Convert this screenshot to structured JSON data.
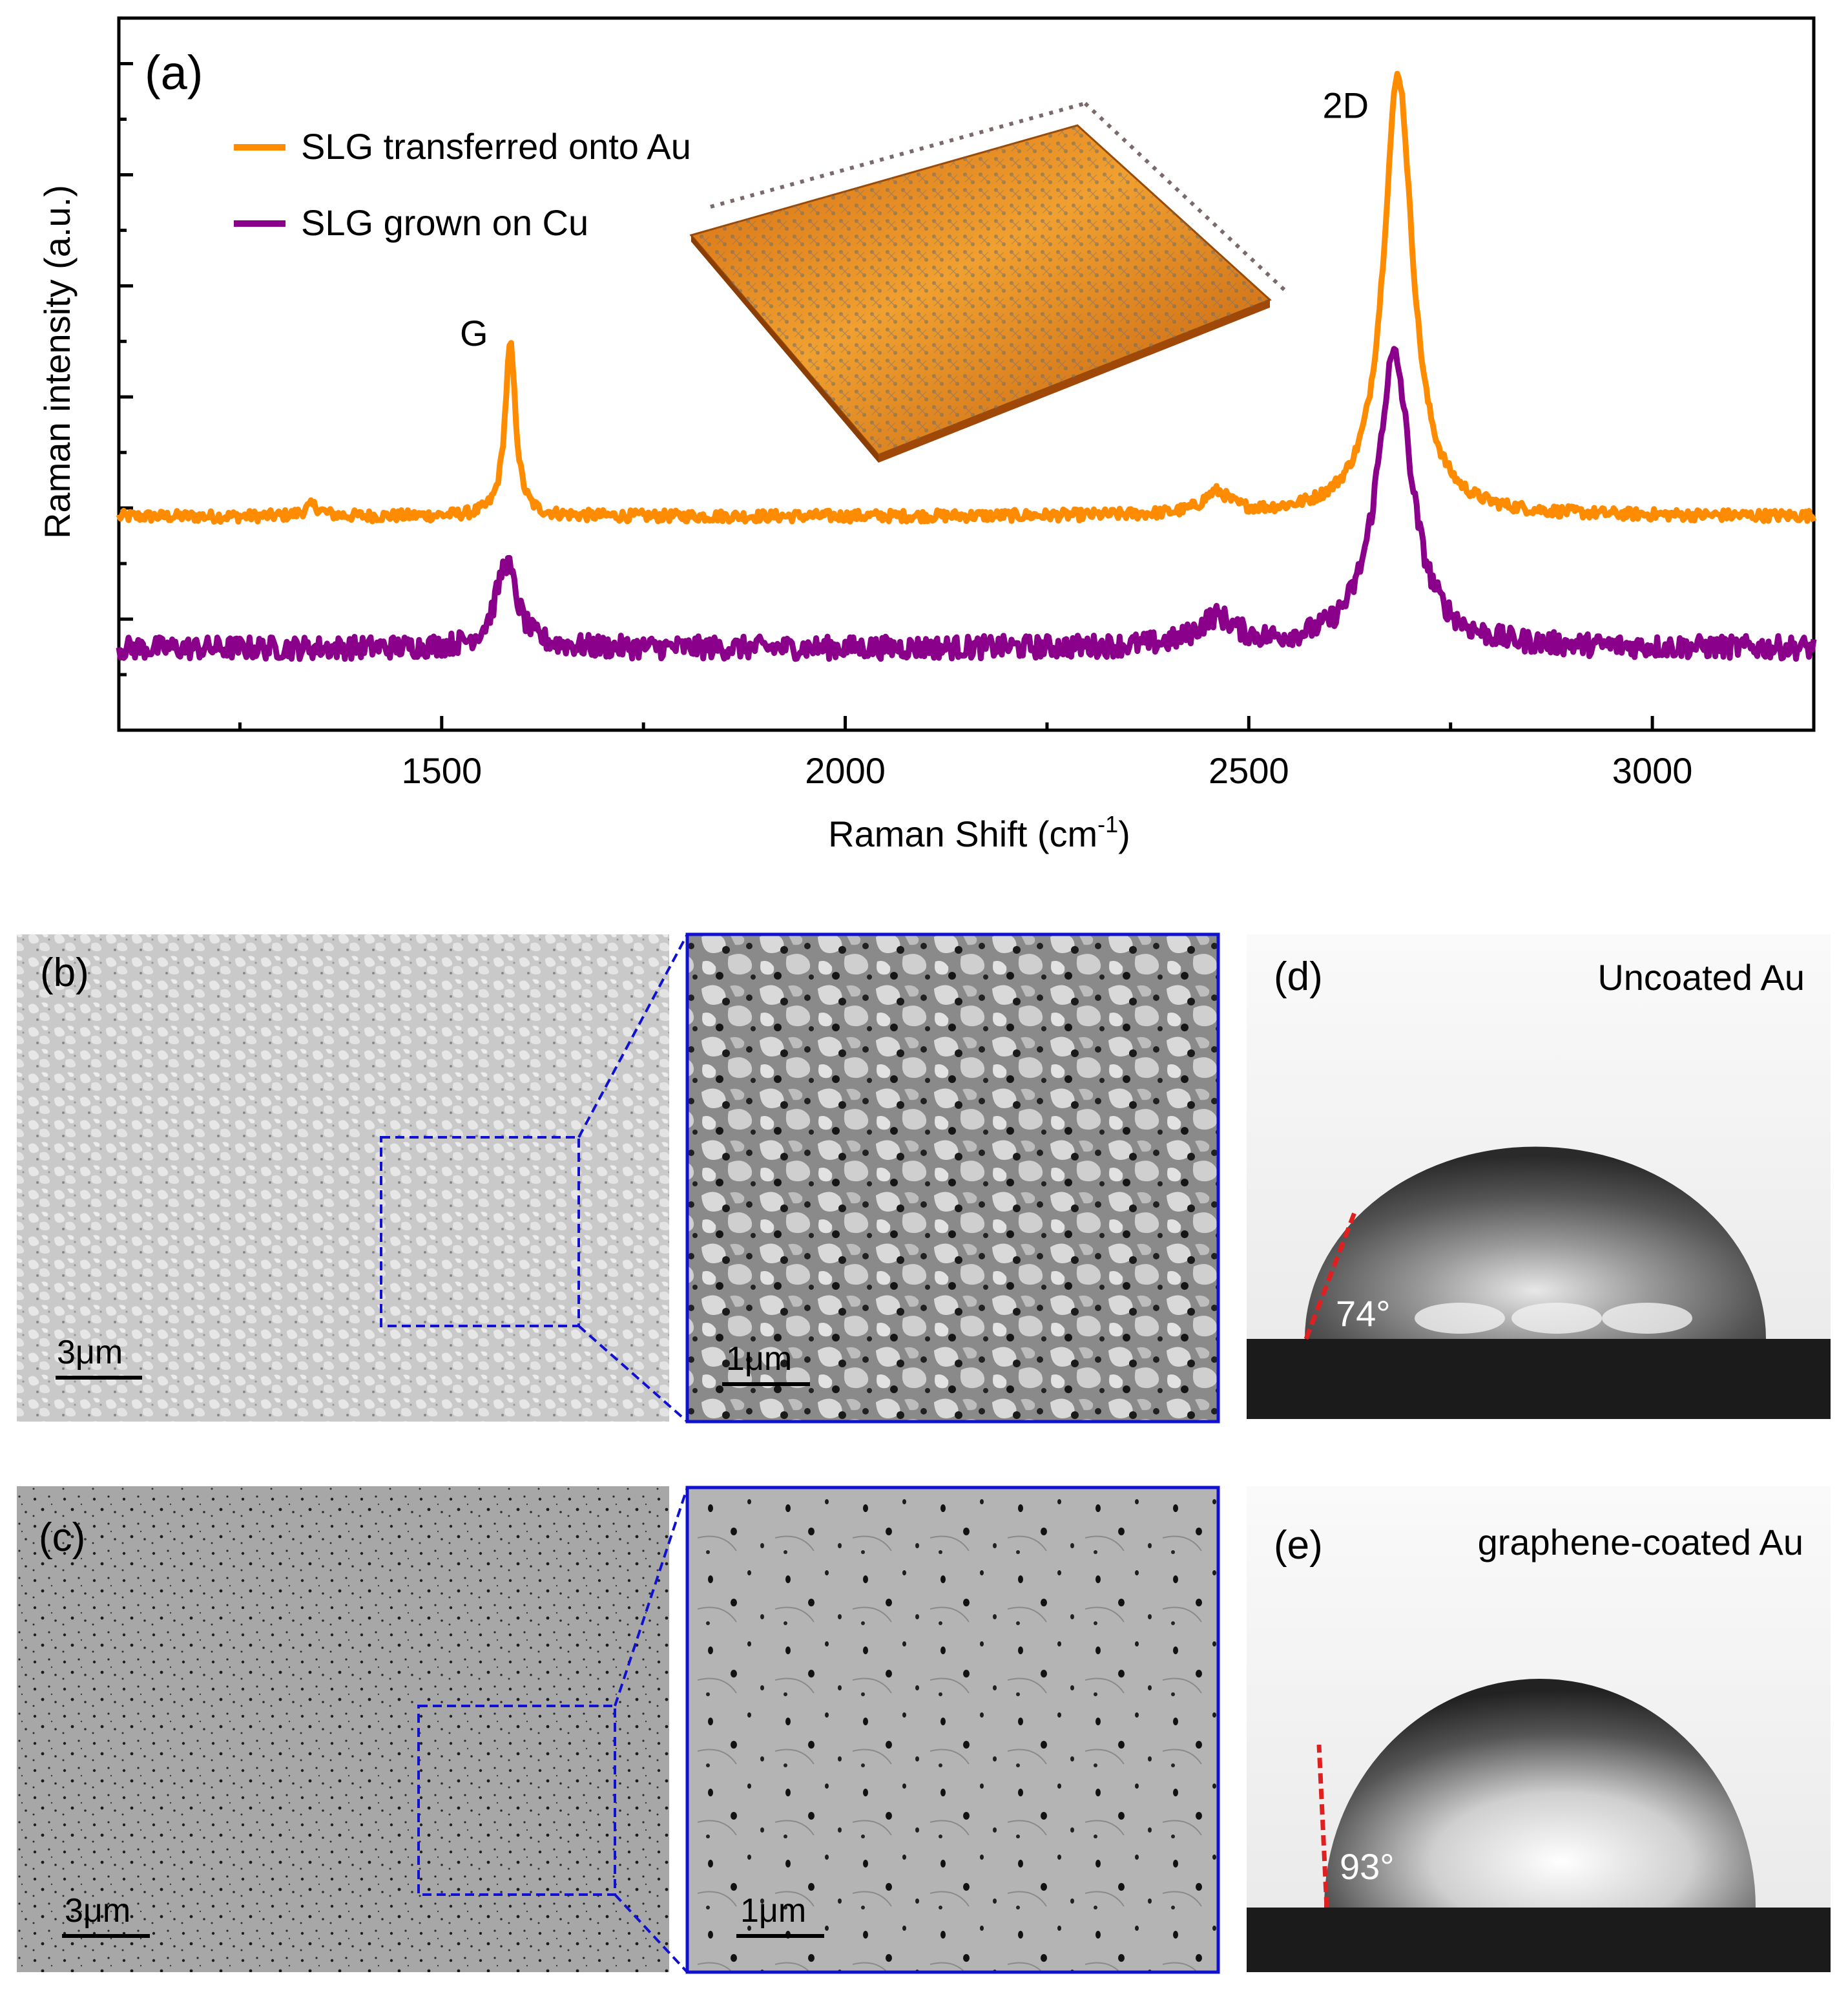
{
  "chart_data": {
    "type": "line",
    "panel_label": "(a)",
    "xlabel": "Raman Shift (cm",
    "xlabel_sup": "-1",
    "xlabel_close": ")",
    "ylabel": "Raman intensity (a.u.)",
    "xlim": [
      1100,
      3200
    ],
    "ylim": [
      0,
      100
    ],
    "x_ticks": [
      1500,
      2000,
      2500,
      3000
    ],
    "x_tick_labels": [
      "1500",
      "2000",
      "2500",
      "3000"
    ],
    "y_tick_labels_shown": false,
    "legend_position": "top-left",
    "series": [
      {
        "name": "SLG transferred onto Au",
        "color": "#ff8c00",
        "baseline": 30,
        "noise": 0.8,
        "peaks": [
          {
            "x": 1340,
            "height": 1.5,
            "width": 12
          },
          {
            "x": 1585,
            "height": 24,
            "width": 8
          },
          {
            "x": 2460,
            "height": 3,
            "width": 20
          },
          {
            "x": 2685,
            "height": 62,
            "width": 22
          }
        ]
      },
      {
        "name": "SLG grown on Cu",
        "color": "#8b008b",
        "baseline": 11.5,
        "noise": 1.6,
        "peaks": [
          {
            "x": 1580,
            "height": 12,
            "width": 16
          },
          {
            "x": 2460,
            "height": 4,
            "width": 28
          },
          {
            "x": 2680,
            "height": 41,
            "width": 26
          }
        ]
      }
    ],
    "annotations": [
      {
        "text": "G",
        "x": 1540,
        "y": 54
      },
      {
        "text": "2D",
        "x": 2620,
        "y": 86
      }
    ],
    "inset": "3D surface of SLG lattice on gold substrate"
  },
  "panels": {
    "b": {
      "label": "(b)",
      "scale_main": "3μm",
      "scale_zoom": "1μm"
    },
    "c": {
      "label": "(c)",
      "scale_main": "3μm",
      "scale_zoom": "1μm"
    },
    "d": {
      "label": "(d)",
      "title": "Uncoated Au",
      "angle": "74°"
    },
    "e": {
      "label": "(e)",
      "title": "graphene-coated Au",
      "angle": "93°"
    }
  },
  "colors": {
    "orange": "#ff8c00",
    "purple": "#8b008b",
    "zoom_box": "#1010d0",
    "angle_line": "#e02020"
  }
}
